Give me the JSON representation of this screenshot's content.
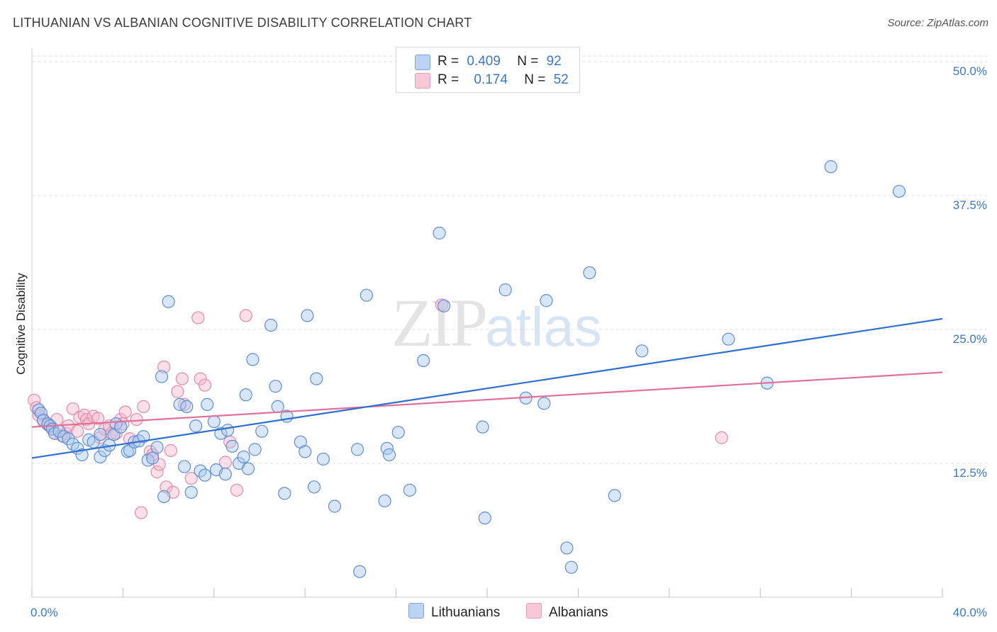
{
  "title": "LITHUANIAN VS ALBANIAN COGNITIVE DISABILITY CORRELATION CHART",
  "source": "Source: ZipAtlas.com",
  "watermark": {
    "zip": "ZIP",
    "atlas": "atlas"
  },
  "legend": {
    "rows": [
      {
        "r_label": "R =",
        "r_value": "0.409",
        "n_label": "N =",
        "n_value": "92"
      },
      {
        "r_label": "R =",
        "r_value": "0.174",
        "n_label": "N =",
        "n_value": "52"
      }
    ]
  },
  "colors": {
    "blue_fill": "#a9c8f0",
    "blue_stroke": "#5b8fd6",
    "blue_line": "#2f6fd0",
    "pink_fill": "#f6b8cc",
    "pink_stroke": "#e58aa8",
    "pink_line": "#e0709a",
    "tick_color": "#3b78c8",
    "grid": "#dcdcdc"
  },
  "chart_data": {
    "type": "scatter",
    "title": "LITHUANIAN VS ALBANIAN COGNITIVE DISABILITY CORRELATION CHART",
    "xlabel": "",
    "ylabel": "Cognitive Disability",
    "xlim": [
      0,
      40
    ],
    "ylim": [
      0,
      51
    ],
    "x_tick_labels": [
      "0.0%",
      "40.0%"
    ],
    "y_ticks": [
      12.5,
      25.0,
      37.5,
      50.0
    ],
    "y_tick_labels": [
      "12.5%",
      "25.0%",
      "37.5%",
      "50.0%"
    ],
    "grid": "horizontal dashed",
    "legend_position": "bottom-center",
    "series": [
      {
        "name": "Lithuanians",
        "color": "#5b8fd6",
        "r": 0.409,
        "n": 92,
        "trend": {
          "x": [
            0,
            40
          ],
          "y": [
            13.0,
            26.0
          ]
        },
        "points": [
          [
            0.3,
            17.5
          ],
          [
            0.4,
            17.2
          ],
          [
            0.5,
            16.5
          ],
          [
            0.7,
            16.2
          ],
          [
            0.8,
            16.0
          ],
          [
            0.9,
            15.7
          ],
          [
            1.0,
            15.3
          ],
          [
            1.2,
            15.5
          ],
          [
            1.4,
            15.0
          ],
          [
            1.6,
            14.8
          ],
          [
            1.8,
            14.3
          ],
          [
            2.0,
            13.9
          ],
          [
            2.2,
            13.3
          ],
          [
            2.5,
            14.7
          ],
          [
            2.7,
            14.5
          ],
          [
            3.0,
            15.2
          ],
          [
            3.0,
            13.1
          ],
          [
            3.2,
            13.7
          ],
          [
            3.4,
            14.2
          ],
          [
            3.6,
            15.2
          ],
          [
            3.7,
            16.2
          ],
          [
            3.9,
            15.9
          ],
          [
            4.2,
            13.6
          ],
          [
            4.3,
            13.7
          ],
          [
            4.5,
            14.5
          ],
          [
            4.7,
            14.6
          ],
          [
            4.9,
            15.0
          ],
          [
            5.1,
            12.8
          ],
          [
            5.3,
            13.0
          ],
          [
            5.5,
            14.0
          ],
          [
            5.7,
            20.6
          ],
          [
            5.8,
            9.4
          ],
          [
            6.0,
            27.6
          ],
          [
            6.5,
            18.0
          ],
          [
            6.7,
            12.2
          ],
          [
            6.8,
            17.8
          ],
          [
            7.0,
            9.8
          ],
          [
            7.2,
            16.0
          ],
          [
            7.4,
            11.8
          ],
          [
            7.6,
            11.4
          ],
          [
            7.7,
            18.0
          ],
          [
            8.0,
            16.4
          ],
          [
            8.1,
            11.9
          ],
          [
            8.3,
            15.3
          ],
          [
            8.5,
            11.5
          ],
          [
            8.6,
            15.6
          ],
          [
            8.8,
            14.1
          ],
          [
            9.1,
            12.5
          ],
          [
            9.3,
            13.1
          ],
          [
            9.4,
            18.9
          ],
          [
            9.5,
            12.0
          ],
          [
            9.7,
            22.2
          ],
          [
            9.8,
            13.8
          ],
          [
            10.1,
            15.5
          ],
          [
            10.5,
            25.4
          ],
          [
            10.7,
            19.7
          ],
          [
            10.8,
            17.8
          ],
          [
            11.1,
            9.7
          ],
          [
            11.2,
            16.9
          ],
          [
            11.8,
            14.5
          ],
          [
            12.0,
            13.6
          ],
          [
            12.1,
            26.3
          ],
          [
            12.4,
            10.3
          ],
          [
            12.5,
            20.4
          ],
          [
            12.8,
            12.9
          ],
          [
            13.3,
            8.5
          ],
          [
            14.3,
            13.8
          ],
          [
            14.4,
            2.4
          ],
          [
            14.7,
            28.2
          ],
          [
            15.5,
            9.0
          ],
          [
            15.6,
            13.9
          ],
          [
            15.7,
            13.3
          ],
          [
            16.1,
            15.4
          ],
          [
            16.6,
            10.0
          ],
          [
            17.2,
            22.1
          ],
          [
            17.9,
            34.0
          ],
          [
            18.1,
            27.2
          ],
          [
            19.8,
            15.9
          ],
          [
            19.9,
            7.4
          ],
          [
            20.8,
            28.7
          ],
          [
            21.7,
            18.6
          ],
          [
            22.5,
            18.1
          ],
          [
            22.6,
            27.7
          ],
          [
            23.5,
            4.6
          ],
          [
            23.7,
            2.8
          ],
          [
            24.5,
            30.3
          ],
          [
            25.6,
            9.5
          ],
          [
            26.8,
            23.0
          ],
          [
            30.6,
            24.1
          ],
          [
            32.3,
            20.0
          ],
          [
            35.1,
            40.2
          ],
          [
            38.1,
            37.9
          ]
        ]
      },
      {
        "name": "Albanians",
        "color": "#e58aa8",
        "r": 0.174,
        "n": 52,
        "trend": {
          "x": [
            0,
            40
          ],
          "y": [
            15.9,
            21.0
          ]
        },
        "points": [
          [
            0.1,
            18.4
          ],
          [
            0.2,
            17.7
          ],
          [
            0.3,
            17.0
          ],
          [
            0.5,
            16.6
          ],
          [
            0.7,
            16.1
          ],
          [
            0.9,
            15.8
          ],
          [
            1.0,
            15.3
          ],
          [
            1.1,
            16.6
          ],
          [
            1.3,
            15.1
          ],
          [
            1.5,
            15.3
          ],
          [
            1.6,
            16.0
          ],
          [
            1.8,
            17.6
          ],
          [
            2.0,
            15.5
          ],
          [
            2.1,
            16.8
          ],
          [
            2.3,
            17.0
          ],
          [
            2.4,
            16.6
          ],
          [
            2.5,
            16.2
          ],
          [
            2.7,
            16.9
          ],
          [
            2.9,
            16.7
          ],
          [
            3.0,
            14.9
          ],
          [
            3.2,
            15.7
          ],
          [
            3.4,
            16.0
          ],
          [
            3.5,
            15.3
          ],
          [
            3.7,
            15.3
          ],
          [
            3.9,
            16.6
          ],
          [
            4.0,
            16.2
          ],
          [
            4.1,
            17.3
          ],
          [
            4.3,
            14.8
          ],
          [
            4.6,
            16.6
          ],
          [
            4.8,
            7.9
          ],
          [
            4.9,
            17.8
          ],
          [
            5.2,
            13.6
          ],
          [
            5.3,
            13.3
          ],
          [
            5.5,
            11.7
          ],
          [
            5.6,
            12.4
          ],
          [
            5.8,
            21.5
          ],
          [
            5.9,
            10.3
          ],
          [
            6.1,
            13.7
          ],
          [
            6.2,
            9.8
          ],
          [
            6.4,
            19.2
          ],
          [
            6.6,
            20.4
          ],
          [
            6.7,
            18.0
          ],
          [
            7.0,
            11.1
          ],
          [
            7.3,
            26.1
          ],
          [
            7.4,
            20.4
          ],
          [
            7.6,
            19.8
          ],
          [
            8.5,
            12.6
          ],
          [
            8.7,
            14.5
          ],
          [
            9.0,
            10.0
          ],
          [
            9.4,
            26.3
          ],
          [
            18.0,
            27.3
          ],
          [
            30.3,
            14.9
          ]
        ]
      }
    ]
  },
  "bottom_legend": {
    "series_a": "Lithuanians",
    "series_b": "Albanians"
  }
}
